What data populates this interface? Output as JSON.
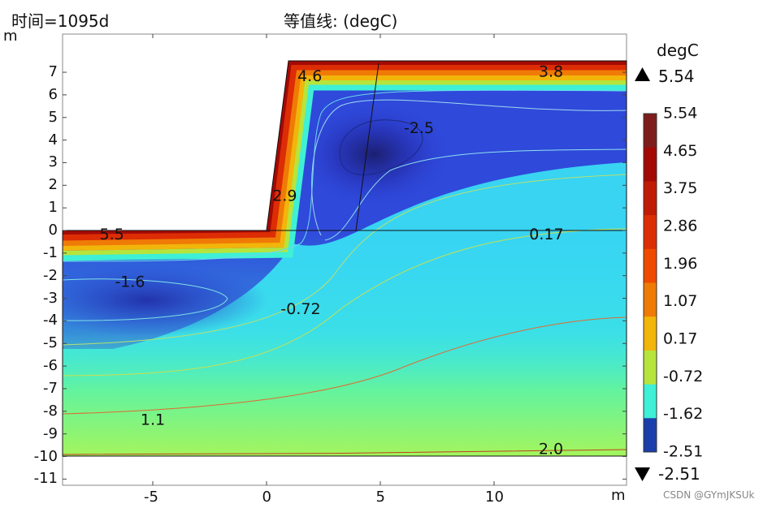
{
  "time_label": "时间=1095d",
  "title": "等值线: (degC)",
  "y_unit": "m",
  "x_unit": "m",
  "watermark": "CSDN @GYmJKSUk",
  "colorbar": {
    "unit": "degC",
    "max_label": "5.54",
    "min_label": "-2.51",
    "ticks": [
      "5.54",
      "4.65",
      "3.75",
      "2.86",
      "1.96",
      "1.07",
      "0.17",
      "-0.72",
      "-1.62",
      "-2.51"
    ],
    "colors": [
      "#7f1d1d",
      "#a30a06",
      "#c01b05",
      "#dd2d05",
      "#ef4a00",
      "#ef7b06",
      "#f2b50a",
      "#b7e43c",
      "#3ef0d6",
      "#1b3faa"
    ]
  },
  "chart_data": {
    "type": "heatmap",
    "title": "等值线: (degC)",
    "xlabel": "m",
    "ylabel": "m",
    "xlim": [
      -9,
      15.8
    ],
    "ylim": [
      -11,
      8
    ],
    "x_ticks": [
      "-5",
      "0",
      "5",
      "10"
    ],
    "y_ticks": [
      "7",
      "6",
      "5",
      "4",
      "3",
      "2",
      "1",
      "0",
      "-1",
      "-2",
      "-3",
      "-4",
      "-5",
      "-6",
      "-7",
      "-8",
      "-9",
      "-10",
      "-11"
    ],
    "domain_outline": [
      [
        -9,
        0
      ],
      [
        0,
        0
      ],
      [
        1,
        7.5
      ],
      [
        15.8,
        7.5
      ],
      [
        15.8,
        -10
      ],
      [
        -9,
        -10
      ]
    ],
    "contour_labels": [
      {
        "text": "4.6",
        "x": 1.9,
        "y": 6.8
      },
      {
        "text": "3.8",
        "x": 12.5,
        "y": 7.0
      },
      {
        "text": "-2.5",
        "x": 6.7,
        "y": 4.5
      },
      {
        "text": "2.9",
        "x": 0.8,
        "y": 1.5
      },
      {
        "text": "5.5",
        "x": -6.8,
        "y": -0.2
      },
      {
        "text": "0.17",
        "x": 12.3,
        "y": -0.2
      },
      {
        "text": "-1.6",
        "x": -6.0,
        "y": -2.3
      },
      {
        "text": "-0.72",
        "x": 1.5,
        "y": -3.5
      },
      {
        "text": "1.1",
        "x": -5.0,
        "y": -8.4
      },
      {
        "text": "2.0",
        "x": 12.5,
        "y": -9.7
      }
    ],
    "colorbar_range": [
      -2.51,
      5.54
    ]
  }
}
